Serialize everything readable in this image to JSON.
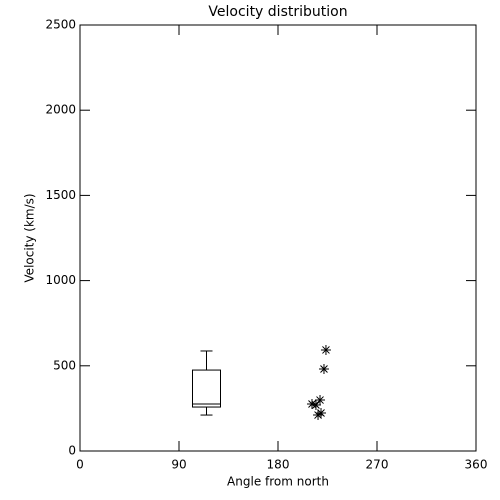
{
  "chart_data": {
    "type": "scatter",
    "title": "Velocity distribution",
    "x_label": "Angle from north",
    "y_label": "Velocity (km/s)",
    "x": [
      223.6,
      221.8,
      218.2,
      210.9,
      214.5,
      216.4,
      219.1
    ],
    "values": [
      593,
      481,
      299,
      276,
      270,
      211,
      223
    ],
    "marker": "asterisk",
    "color": "#000000",
    "box": {
      "x": 115,
      "whisker_low": 211,
      "q1": 258,
      "median": 276,
      "q3": 475,
      "whisker_high": 587
    },
    "xlim": [
      0,
      360
    ],
    "xticks": [
      0,
      90,
      180,
      270,
      360
    ],
    "ylim": [
      0,
      2500
    ],
    "yticks": [
      0,
      500,
      1000,
      1500,
      2000,
      2500
    ],
    "grid": false
  }
}
